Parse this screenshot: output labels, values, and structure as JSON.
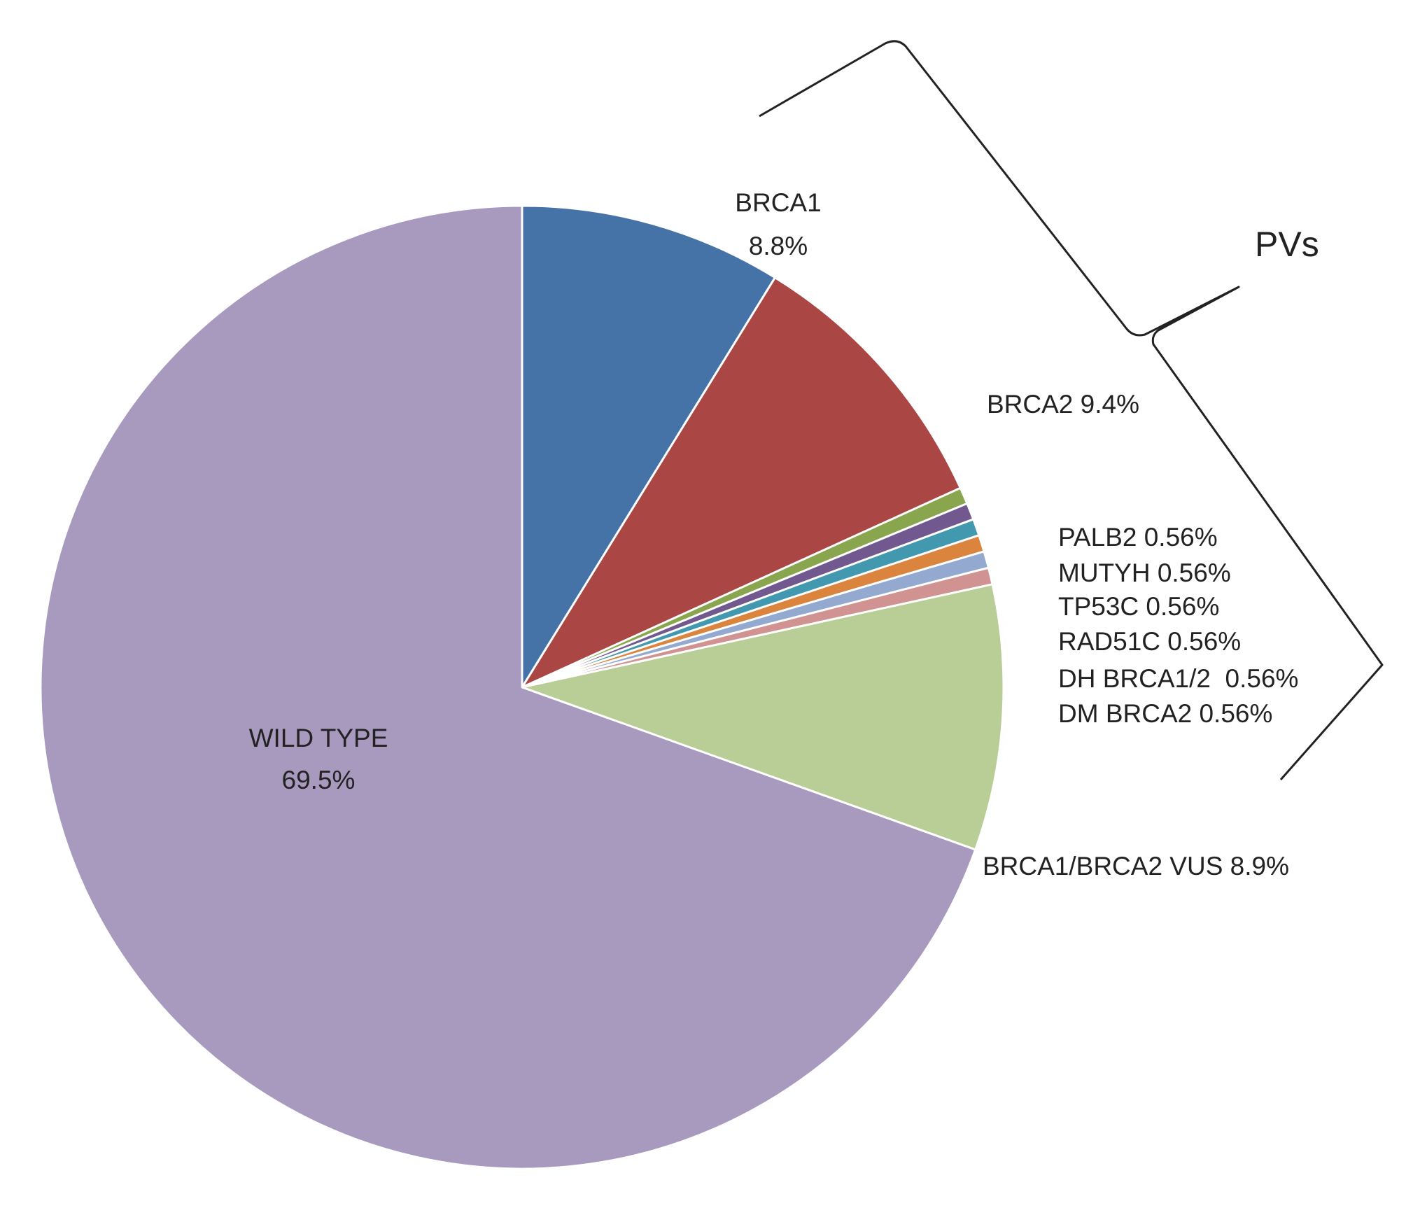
{
  "chart_data": {
    "type": "pie",
    "slices": [
      {
        "name": "BRCA1",
        "value": 8.8,
        "label": "8.8%",
        "color": "#4572A7"
      },
      {
        "name": "BRCA2",
        "value": 9.4,
        "label": "9.4%",
        "color": "#AA4643"
      },
      {
        "name": "PALB2",
        "value": 0.56,
        "label": "0.56%",
        "color": "#89A54E"
      },
      {
        "name": "MUTYH",
        "value": 0.56,
        "label": "0.56%",
        "color": "#71588F"
      },
      {
        "name": "TP53C",
        "value": 0.56,
        "label": "0.56%",
        "color": "#4198AF"
      },
      {
        "name": "RAD51C",
        "value": 0.56,
        "label": "0.56%",
        "color": "#DB843D"
      },
      {
        "name": "DH BRCA1/2",
        "value": 0.56,
        "label": "0.56%",
        "color": "#93A9CF"
      },
      {
        "name": "DM BRCA2",
        "value": 0.56,
        "label": "0.56%",
        "color": "#D19392"
      },
      {
        "name": "BRCA1/BRCA2 VUS",
        "value": 8.9,
        "label": "8.9%",
        "color": "#B9CD96"
      },
      {
        "name": "WILD TYPE",
        "value": 69.5,
        "label": "69.5%",
        "color": "#A899BE"
      }
    ],
    "bracket_label": "PVs",
    "start_angle": "12 o'clock",
    "direction": "clockwise"
  },
  "labels": {
    "brca1_name": "BRCA1",
    "brca1_pct": "8.8%",
    "brca2": "BRCA2 9.4%",
    "palb2": "PALB2 0.56%",
    "mutyh": "MUTYH 0.56%",
    "tp53c": "TP53C 0.56%",
    "rad51c": "RAD51C 0.56%",
    "dh_brca12": "DH BRCA1/2  0.56%",
    "dm_brca2": "DM BRCA2 0.56%",
    "vus": "BRCA1/BRCA2 VUS 8.9%",
    "wild_name": "WILD TYPE",
    "wild_pct": "69.5%",
    "pvs": "PVs"
  }
}
